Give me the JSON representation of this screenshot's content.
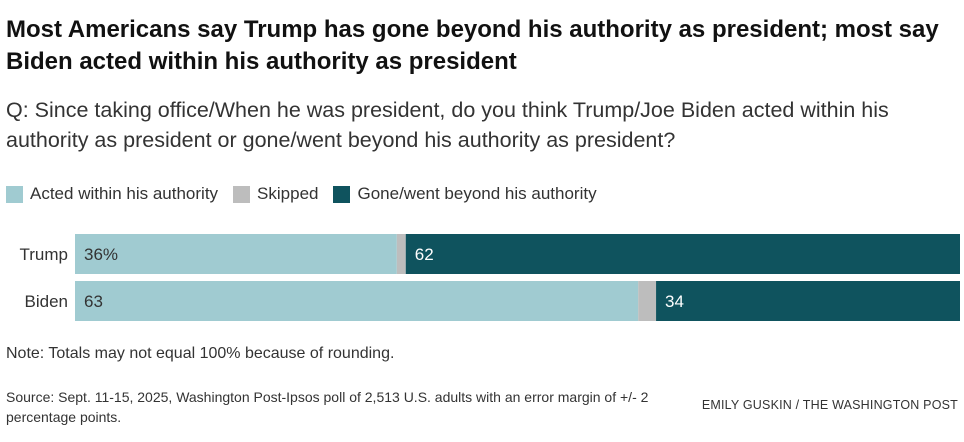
{
  "title": "Most Americans say Trump has gone beyond his authority as president; most say Biden acted within his authority as president",
  "subtitle": "Q: Since taking office/When he was president, do you think Trump/Joe Biden acted within his authority as president or gone/went beyond his authority as president?",
  "note": "Note: Totals may not equal 100% because of rounding.",
  "source": "Source: Sept. 11-15, 2025, Washington Post-Ipsos poll of 2,513 U.S. adults with an error margin of +/- 2 percentage points.",
  "credit": "EMILY GUSKIN / THE WASHINGTON POST",
  "legend": [
    {
      "name": "Acted within his authority",
      "color": "#a0cbd1"
    },
    {
      "name": "Skipped",
      "color": "#bdbdbd"
    },
    {
      "name": "Gone/went beyond his authority",
      "color": "#0f535e"
    }
  ],
  "chart_data": {
    "type": "bar",
    "orientation": "horizontal",
    "stacked": true,
    "title": "Most Americans say Trump has gone beyond his authority as president; most say Biden acted within his authority as president",
    "categories": [
      "Trump",
      "Biden"
    ],
    "series": [
      {
        "name": "Acted within his authority",
        "values": [
          36,
          63
        ],
        "labels": [
          "36%",
          "63"
        ],
        "color": "#a0cbd1",
        "label_color": "#333333"
      },
      {
        "name": "Skipped",
        "values": [
          1,
          2
        ],
        "labels": [
          "",
          ""
        ],
        "color": "#bdbdbd",
        "label_color": "#333333"
      },
      {
        "name": "Gone/went beyond his authority",
        "values": [
          62,
          34
        ],
        "labels": [
          "62",
          "34"
        ],
        "color": "#0f535e",
        "label_color": "#ffffff"
      }
    ],
    "xlim": [
      0,
      99
    ],
    "xlabel": "",
    "ylabel": "",
    "legend": "top-left",
    "grid": false
  }
}
